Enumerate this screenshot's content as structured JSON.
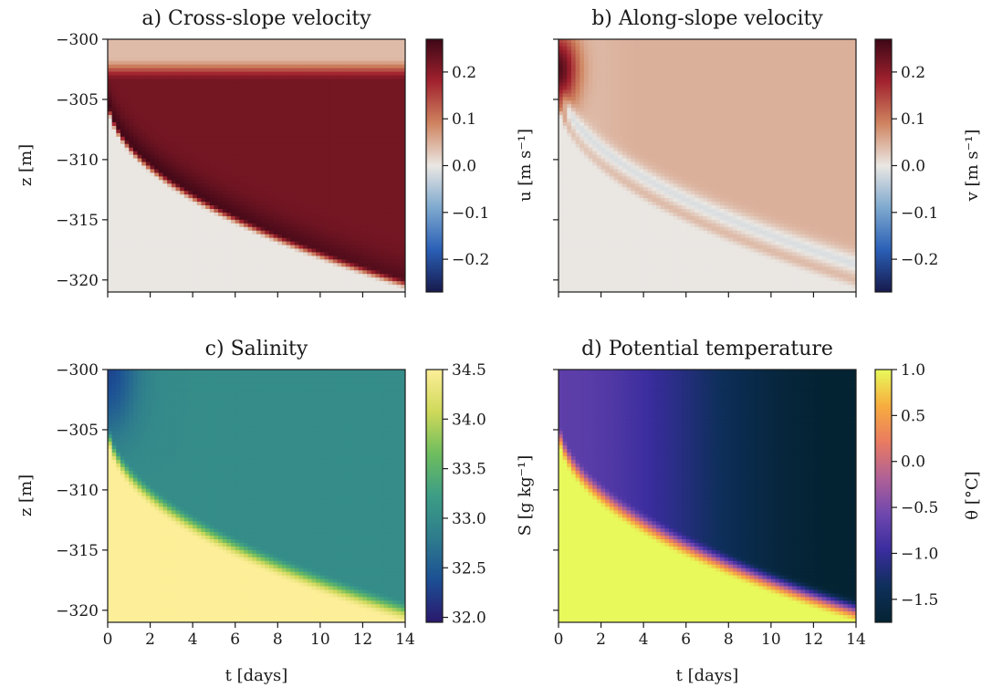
{
  "chart_data": [
    {
      "type": "heatmap",
      "title": "a) Cross-slope velocity",
      "ylabel": "z [m]",
      "xlabel": "",
      "xlim": [
        0,
        14
      ],
      "ylim": [
        -321,
        -300
      ],
      "xticks": [
        0,
        2,
        4,
        6,
        8,
        10,
        12,
        14
      ],
      "xtick_labels_shown": false,
      "yticks": [
        -300,
        -305,
        -310,
        -315,
        -320
      ],
      "ytick_labels": [
        "−300",
        "−305",
        "−310",
        "−315",
        "−320"
      ],
      "colorbar": {
        "label": "u [m s⁻¹]",
        "vmin": -0.27,
        "vmax": 0.27,
        "ticks": [
          0.2,
          0.1,
          0.0,
          -0.1,
          -0.2
        ],
        "tick_labels": [
          "0.2",
          "0.1",
          "0.0",
          "−0.1",
          "−0.2"
        ],
        "colormap": "balance",
        "colormap_stops": [
          "#171a4c",
          "#2a5fb6",
          "#7ea9cf",
          "#eae7e3",
          "#cf8460",
          "#a1222e",
          "#3e0716"
        ]
      },
      "field": {
        "interior_value": 0.22,
        "core_value": 0.27,
        "top_layer_value": 0.04,
        "below_plume_value": 0.0,
        "plume_interface_start": -305,
        "plume_interface_end": -320.5
      }
    },
    {
      "type": "heatmap",
      "title": "b) Along-slope velocity",
      "ylabel": "",
      "xlabel": "",
      "xlim": [
        0,
        14
      ],
      "ylim": [
        -321,
        -300
      ],
      "xticks": [
        0,
        2,
        4,
        6,
        8,
        10,
        12,
        14
      ],
      "xtick_labels_shown": false,
      "yticks": [
        -300,
        -305,
        -310,
        -315,
        -320
      ],
      "ytick_labels_shown": false,
      "colorbar": {
        "label": "v [m s⁻¹]",
        "vmin": -0.27,
        "vmax": 0.27,
        "ticks": [
          0.2,
          0.1,
          0.0,
          -0.1,
          -0.2
        ],
        "tick_labels": [
          "0.2",
          "0.1",
          "0.0",
          "−0.1",
          "−0.2"
        ],
        "colormap": "balance",
        "colormap_stops": [
          "#171a4c",
          "#2a5fb6",
          "#7ea9cf",
          "#eae7e3",
          "#cf8460",
          "#a1222e",
          "#3e0716"
        ]
      },
      "field": {
        "interior_value": 0.05,
        "core_value": 0.25,
        "negative_band_value": -0.02,
        "below_plume_value": 0.0,
        "plume_interface_start": -305,
        "plume_interface_end": -320.5
      }
    },
    {
      "type": "heatmap",
      "title": "c) Salinity",
      "ylabel": "z [m]",
      "xlabel": "t [days]",
      "xlim": [
        0,
        14
      ],
      "ylim": [
        -321,
        -300
      ],
      "xticks": [
        0,
        2,
        4,
        6,
        8,
        10,
        12,
        14
      ],
      "xtick_labels": [
        "0",
        "2",
        "4",
        "6",
        "8",
        "10",
        "12",
        "14"
      ],
      "yticks": [
        -300,
        -305,
        -310,
        -315,
        -320
      ],
      "ytick_labels": [
        "−300",
        "−305",
        "−310",
        "−315",
        "−320"
      ],
      "colorbar": {
        "label": "S [g kg⁻¹]",
        "vmin": 31.95,
        "vmax": 34.5,
        "ticks": [
          34.5,
          34.0,
          33.5,
          33.0,
          32.5,
          32.0
        ],
        "tick_labels": [
          "34.5",
          "34.0",
          "33.5",
          "33.0",
          "32.5",
          "32.0"
        ],
        "colormap": "haline",
        "colormap_stops": [
          "#2a186c",
          "#1c4f94",
          "#2e7c8d",
          "#3c9d85",
          "#6ebd5e",
          "#cfd95a",
          "#fdee99"
        ]
      },
      "field": {
        "interior_value": 33.0,
        "early_fresh_value": 32.3,
        "below_plume_value": 34.5,
        "plume_interface_start": -305,
        "plume_interface_end": -320.5
      }
    },
    {
      "type": "heatmap",
      "title": "d) Potential temperature",
      "ylabel": "",
      "xlabel": "t [days]",
      "xlim": [
        0,
        14
      ],
      "ylim": [
        -321,
        -300
      ],
      "xticks": [
        0,
        2,
        4,
        6,
        8,
        10,
        12,
        14
      ],
      "xtick_labels": [
        "0",
        "2",
        "4",
        "6",
        "8",
        "10",
        "12",
        "14"
      ],
      "yticks": [
        -300,
        -305,
        -310,
        -315,
        -320
      ],
      "ytick_labels_shown": false,
      "colorbar": {
        "label": "θ [°C]",
        "vmin": -1.75,
        "vmax": 1.0,
        "ticks": [
          1.0,
          0.5,
          0.0,
          -0.5,
          -1.0,
          -1.5
        ],
        "tick_labels": [
          "1.0",
          "0.5",
          "0.0",
          "−0.5",
          "−1.0",
          "−1.5"
        ],
        "colormap": "thermal",
        "colormap_stops": [
          "#042333",
          "#0e2f5a",
          "#3a2d9e",
          "#6f47ae",
          "#b06196",
          "#e97b61",
          "#f7ad3e",
          "#e8fa5b"
        ]
      },
      "field": {
        "start_value": -0.7,
        "end_value": -1.75,
        "below_plume_value": 1.0,
        "plume_interface_start": -305,
        "plume_interface_end": -320.5
      }
    }
  ]
}
